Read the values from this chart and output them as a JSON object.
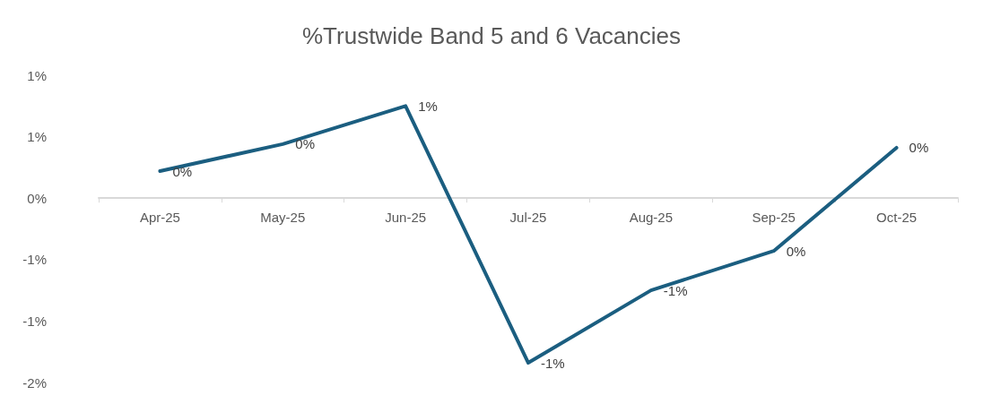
{
  "chart_data": {
    "type": "line",
    "title": "%Trustwide Band 5 and 6 Vacancies",
    "categories": [
      "Apr-25",
      "May-25",
      "Jun-25",
      "Jul-25",
      "Aug-25",
      "Sep-25",
      "Oct-25"
    ],
    "series": [
      {
        "color": "#1b5e80",
        "values": [
          0.22,
          0.44,
          0.75,
          -1.34,
          -0.75,
          -0.43,
          0.41
        ],
        "value_labels": [
          "0%",
          "0%",
          "1%",
          "-1%",
          "-1%",
          "0%",
          "0%"
        ]
      }
    ],
    "ylim": [
      -1.5,
      1
    ],
    "yticks": [
      {
        "value": 1,
        "label": "1%"
      },
      {
        "value": 0.5,
        "label": "1%"
      },
      {
        "value": 0,
        "label": "0%"
      },
      {
        "value": -0.5,
        "label": "-1%"
      },
      {
        "value": -1,
        "label": "-1%"
      },
      {
        "value": -1.5,
        "label": "-2%"
      }
    ],
    "grid": false,
    "line_style": "solid"
  }
}
